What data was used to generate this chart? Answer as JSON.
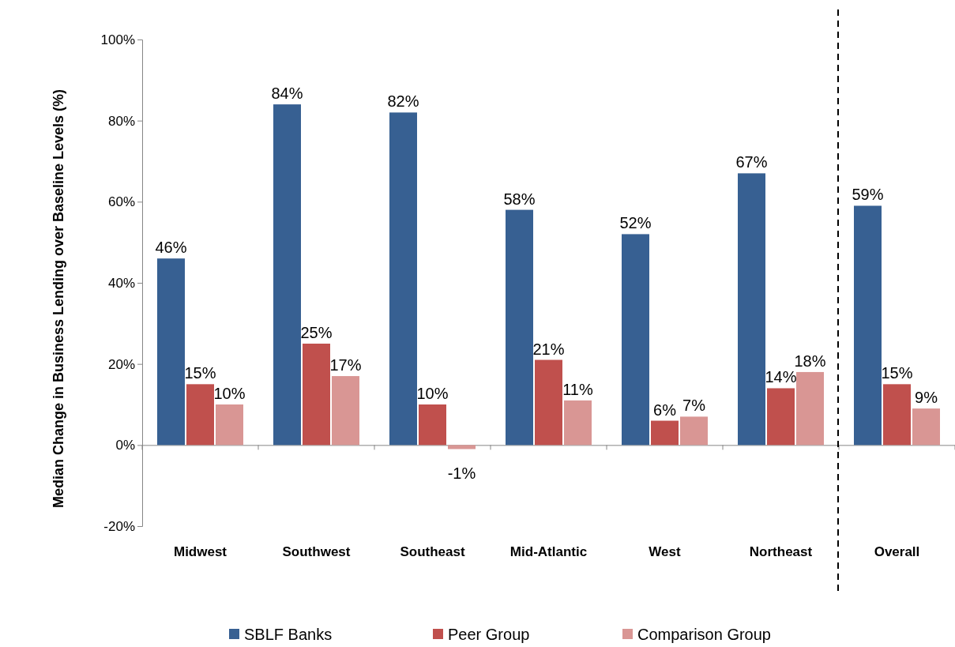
{
  "chart_data": {
    "type": "bar",
    "ylabel": "Median Change in Business Lending over Baseline Levels (%)",
    "categories": [
      "Midwest",
      "Southwest",
      "Southeast",
      "Mid-Atlantic",
      "West",
      "Northeast",
      "Overall"
    ],
    "series": [
      {
        "name": "SBLF Banks",
        "color": "#376092",
        "values": [
          46,
          84,
          82,
          58,
          52,
          67,
          59
        ]
      },
      {
        "name": "Peer Group",
        "color": "#c0504d",
        "values": [
          15,
          25,
          10,
          21,
          6,
          14,
          15
        ]
      },
      {
        "name": "Comparison Group",
        "color": "#d99694",
        "values": [
          10,
          17,
          -1,
          11,
          7,
          18,
          9
        ]
      }
    ],
    "ylim": [
      -20,
      100
    ],
    "yticks": [
      {
        "value": -20,
        "label": "-20%"
      },
      {
        "value": 0,
        "label": "0%"
      },
      {
        "value": 20,
        "label": "20%"
      },
      {
        "value": 40,
        "label": "40%"
      },
      {
        "value": 60,
        "label": "60%"
      },
      {
        "value": 80,
        "label": "80%"
      },
      {
        "value": 100,
        "label": "100%"
      }
    ],
    "value_labels": [
      [
        "46%",
        "84%",
        "82%",
        "58%",
        "52%",
        "67%",
        "59%"
      ],
      [
        "15%",
        "25%",
        "10%",
        "21%",
        "6%",
        "14%",
        "15%"
      ],
      [
        "10%",
        "17%",
        "-1%",
        "11%",
        "7%",
        "18%",
        "9%"
      ]
    ],
    "legend": "bottom"
  }
}
